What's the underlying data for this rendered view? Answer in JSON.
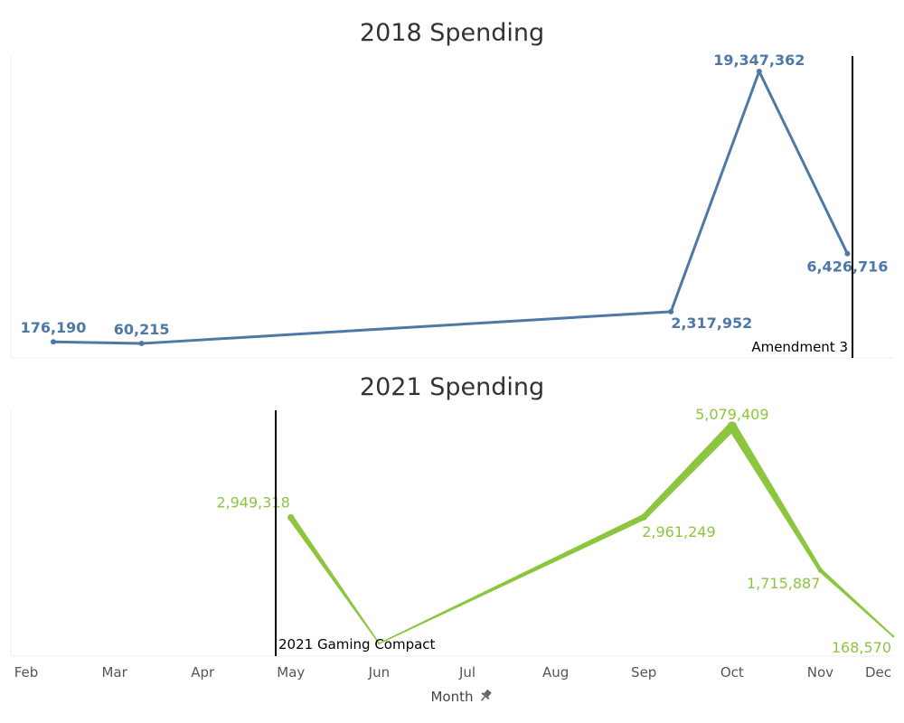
{
  "chart_data": [
    {
      "type": "line",
      "title": "2018 Spending",
      "categories": [
        "Feb",
        "Mar",
        "Apr",
        "May",
        "Jun",
        "Jul",
        "Aug",
        "Sep",
        "Oct",
        "Nov",
        "Dec"
      ],
      "series": [
        {
          "color": "#4e79a7",
          "points": [
            {
              "x": "Feb",
              "y": 176190,
              "label": "176,190"
            },
            {
              "x": "Mar",
              "y": 60215,
              "label": "60,215"
            },
            {
              "x": "Sep",
              "y": 2317952,
              "label": "2,317,952"
            },
            {
              "x": "Oct",
              "y": 19347362,
              "label": "19,347,362"
            },
            {
              "x": "Nov",
              "y": 6426716,
              "label": "6,426,716"
            }
          ]
        }
      ],
      "annotation": {
        "text": "Amendment 3",
        "x": "Dec"
      },
      "ylim": [
        0,
        19347362
      ],
      "grid": false
    },
    {
      "type": "line",
      "title": "2021 Spending",
      "categories": [
        "Feb",
        "Mar",
        "Apr",
        "May",
        "Jun",
        "Jul",
        "Aug",
        "Sep",
        "Oct",
        "Nov",
        "Dec"
      ],
      "series": [
        {
          "color": "#8cc63f",
          "points": [
            {
              "x": "May",
              "y": 2949318,
              "label": "2,949,318"
            },
            {
              "x": "Jun",
              "y": 0,
              "label": ""
            },
            {
              "x": "Sep",
              "y": 2961249,
              "label": "2,961,249"
            },
            {
              "x": "Oct",
              "y": 5079409,
              "label": "5,079,409"
            },
            {
              "x": "Nov",
              "y": 1715887,
              "label": "1,715,887"
            },
            {
              "x": "Dec",
              "y": 168570,
              "label": "168,570"
            }
          ]
        }
      ],
      "annotation": {
        "text": "2021 Gaming Compact",
        "x": "May"
      },
      "ylim": [
        0,
        5079409
      ],
      "grid": false
    }
  ],
  "xaxis": {
    "label": "Month",
    "ticks": [
      "Feb",
      "Mar",
      "Apr",
      "May",
      "Jun",
      "Jul",
      "Aug",
      "Sep",
      "Oct",
      "Nov",
      "Dec"
    ],
    "pin_icon": "pin-icon"
  }
}
